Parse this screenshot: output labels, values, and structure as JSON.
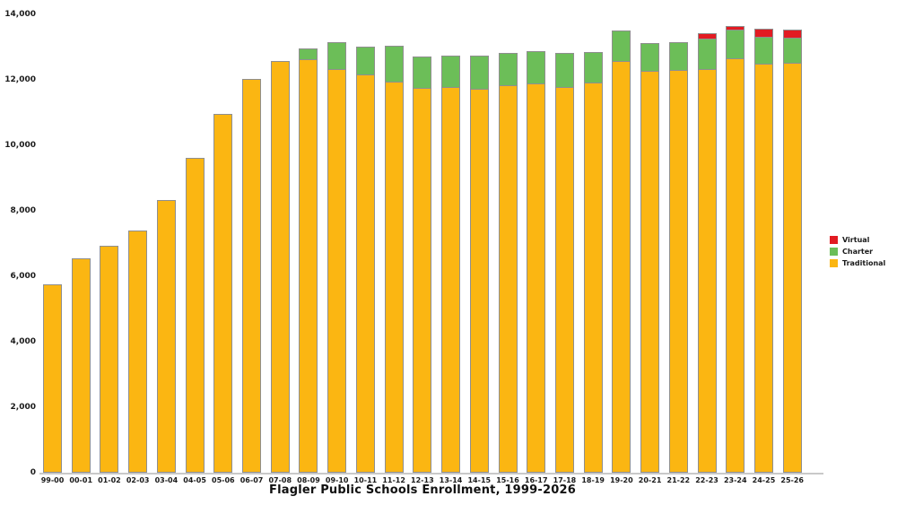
{
  "chart_data": {
    "type": "bar",
    "stacked": true,
    "title": "Flagler Public Schools Enrollment, 1999-2026",
    "xlabel": "",
    "ylabel": "",
    "ylim": [
      0,
      14000
    ],
    "ytick_interval": 2000,
    "ytick_labels": [
      "0",
      "2,000",
      "4,000",
      "6,000",
      "8,000",
      "10,000",
      "12,000",
      "14,000"
    ],
    "grid": false,
    "legend_position": "right",
    "axis_line_color": "#c9c9c9",
    "text_color": "#1a1a1a",
    "categories": [
      "99-00",
      "00-01",
      "01-02",
      "02-03",
      "03-04",
      "04-05",
      "05-06",
      "06-07",
      "07-08",
      "08-09",
      "09-10",
      "10-11",
      "11-12",
      "12-13",
      "13-14",
      "14-15",
      "15-16",
      "16-17",
      "17-18",
      "18-19",
      "19-20",
      "20-21",
      "21-22",
      "22-23",
      "23-24",
      "24-25",
      "25-26"
    ],
    "series": [
      {
        "name": "Traditional",
        "color": "#FBB612",
        "values": [
          5750,
          6550,
          6930,
          7400,
          8330,
          9630,
          10950,
          12025,
          12580,
          12630,
          12340,
          12170,
          11945,
          11765,
          11775,
          11735,
          11835,
          11900,
          11790,
          11930,
          12585,
          12265,
          12290,
          12340,
          12650,
          12495,
          12520
        ]
      },
      {
        "name": "Charter",
        "color": "#6CBE58",
        "values": [
          0,
          0,
          0,
          0,
          0,
          0,
          0,
          0,
          0,
          330,
          800,
          850,
          1095,
          950,
          975,
          1010,
          980,
          970,
          1025,
          910,
          915,
          865,
          870,
          915,
          875,
          820,
          775
        ]
      },
      {
        "name": "Virtual",
        "color": "#E21B22",
        "values": [
          0,
          0,
          0,
          0,
          0,
          0,
          0,
          0,
          0,
          0,
          0,
          0,
          0,
          0,
          0,
          0,
          0,
          0,
          0,
          0,
          0,
          0,
          0,
          180,
          110,
          240,
          230
        ]
      }
    ],
    "legend_entries": [
      {
        "label": "Virtual",
        "color": "#E21B22"
      },
      {
        "label": "Charter",
        "color": "#6CBE58"
      },
      {
        "label": "Traditional",
        "color": "#FBB612"
      }
    ]
  }
}
